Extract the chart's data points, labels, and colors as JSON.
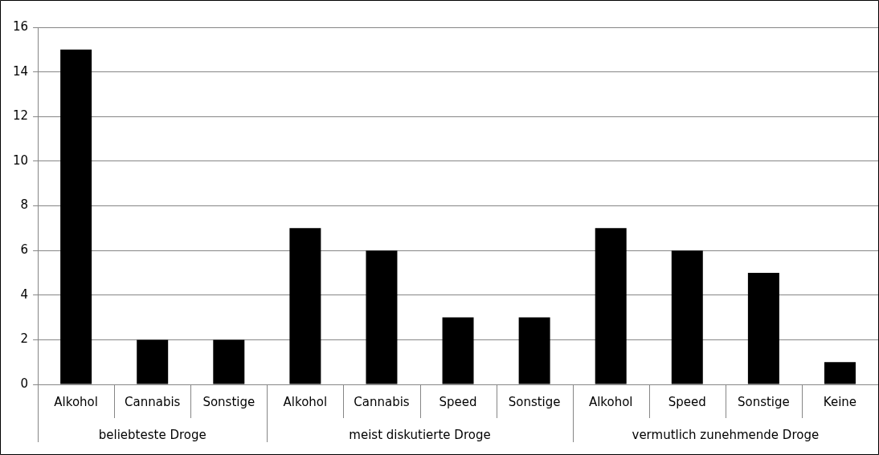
{
  "chart_data": {
    "type": "bar",
    "categories": [
      "Alkohol",
      "Cannabis",
      "Sonstige",
      "Alkohol",
      "Cannabis",
      "Speed",
      "Sonstige",
      "Alkohol",
      "Speed",
      "Sonstige",
      "Keine"
    ],
    "values": [
      15,
      2,
      2,
      7,
      6,
      3,
      3,
      7,
      6,
      5,
      1
    ],
    "color": "#000000",
    "ylim": [
      0,
      16
    ],
    "yticks": [
      0,
      2,
      4,
      6,
      8,
      10,
      12,
      14,
      16
    ],
    "grid": "y",
    "legend": false,
    "annotations": [
      "beliebteste Droge",
      "meist diskutierte Droge",
      "vermutlich zunehmende Droge"
    ]
  }
}
